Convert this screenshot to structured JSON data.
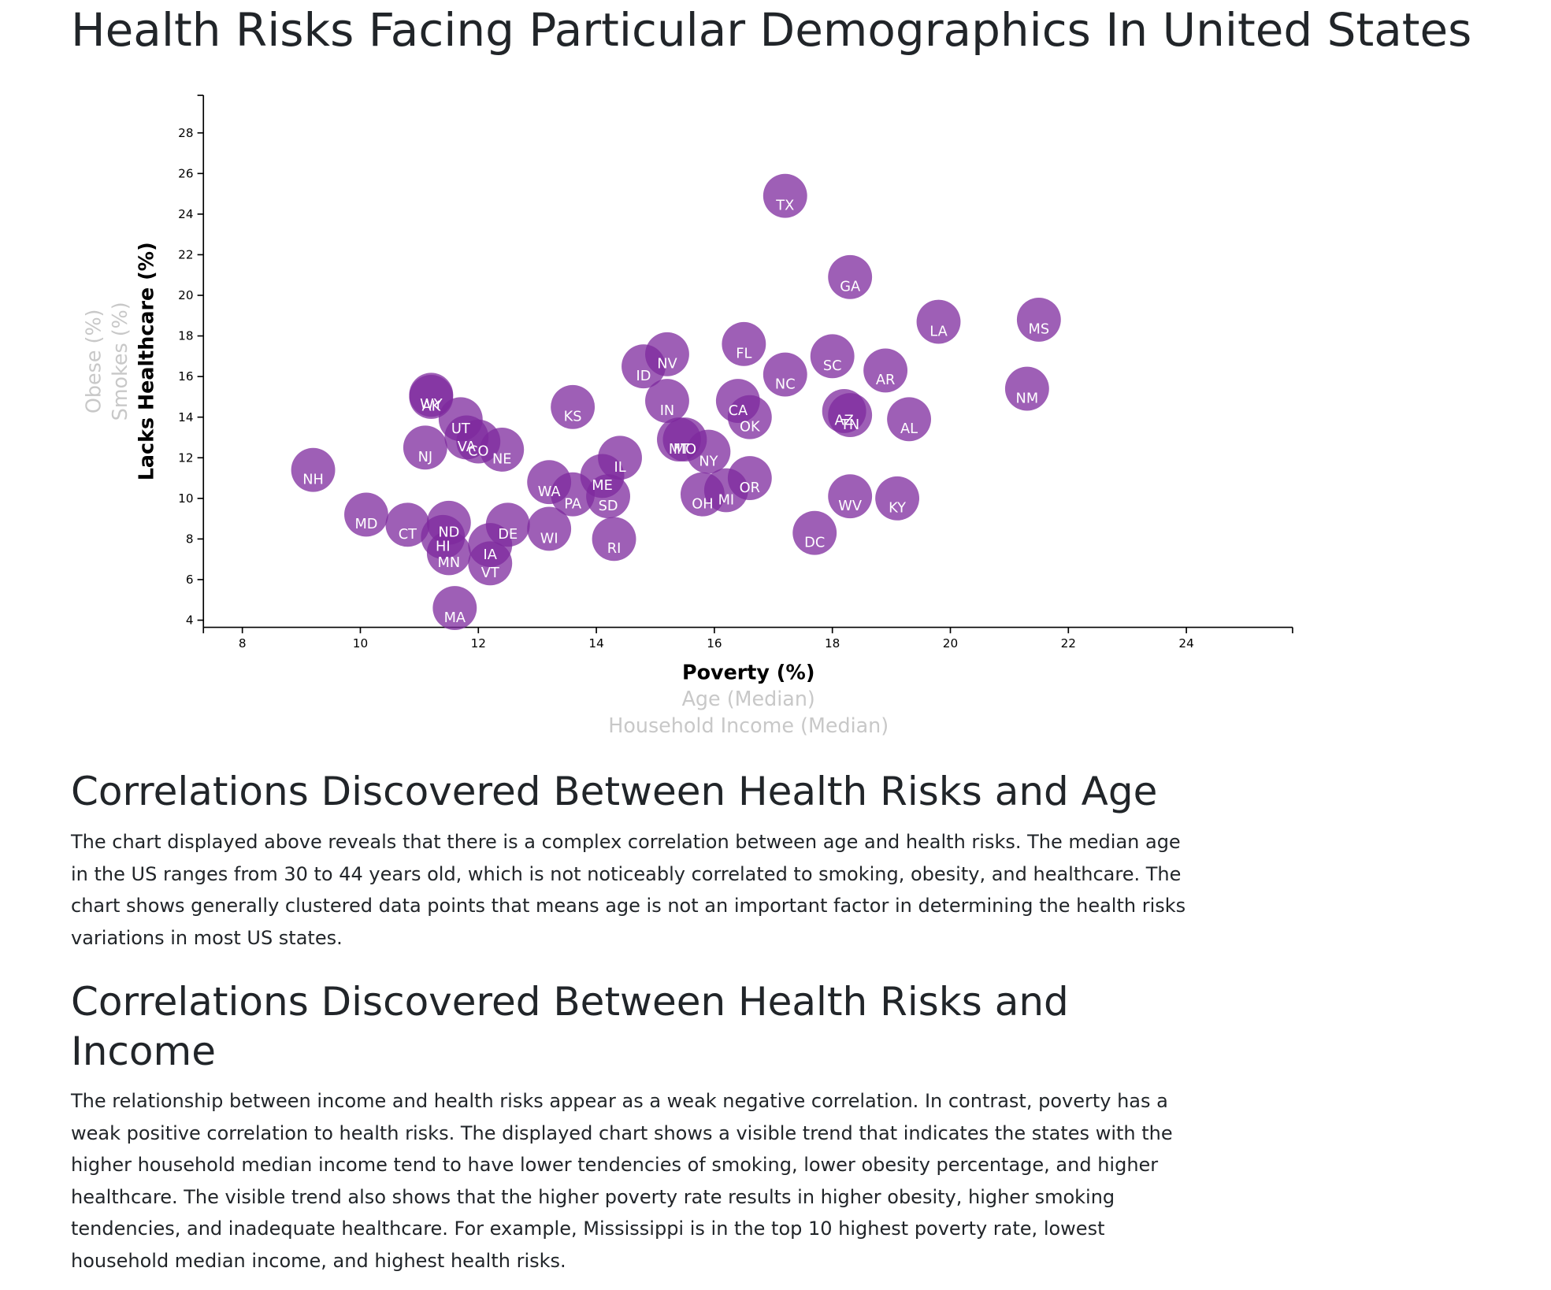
{
  "chart_data": {
    "type": "scatter",
    "title": "Health Risks Facing Particular Demographics In United States",
    "x_axis_options": [
      "Poverty (%)",
      "Age (Median)",
      "Household Income (Median)"
    ],
    "y_axis_options": [
      "Lacks Healthcare (%)",
      "Smokes (%)",
      "Obese (%)"
    ],
    "color": "#7d2a9e",
    "xlim": [
      7.34,
      25.8
    ],
    "ylim": [
      3.65,
      29.85
    ],
    "xticks": [
      8,
      10,
      12,
      14,
      16,
      18,
      20,
      22,
      24
    ],
    "yticks": [
      4,
      6,
      8,
      10,
      12,
      14,
      16,
      18,
      20,
      22,
      24,
      26,
      28
    ],
    "labels": [
      "TX",
      "GA",
      "LA",
      "MS",
      "FL",
      "NV",
      "ID",
      "SC",
      "NC",
      "AR",
      "NM",
      "KS",
      "IN",
      "CA",
      "OK",
      "AZ",
      "TN",
      "AL",
      "WY",
      "AK",
      "UT",
      "VA",
      "CO",
      "NE",
      "NJ",
      "NH",
      "IL",
      "MT",
      "MO",
      "NY",
      "ME",
      "WA",
      "PA",
      "SD",
      "OR",
      "OH",
      "MI",
      "WV",
      "KY",
      "DC",
      "MD",
      "CT",
      "ND",
      "HI",
      "DE",
      "WI",
      "IA",
      "MN",
      "VT",
      "RI",
      "MA"
    ],
    "x": [
      17.2,
      18.3,
      19.8,
      21.5,
      16.5,
      15.2,
      14.8,
      18.0,
      17.2,
      18.9,
      21.3,
      13.6,
      15.2,
      16.4,
      16.6,
      18.2,
      18.3,
      19.3,
      11.2,
      11.2,
      11.7,
      11.8,
      12.0,
      12.4,
      11.1,
      9.2,
      14.4,
      15.4,
      15.5,
      15.9,
      14.1,
      13.2,
      13.6,
      14.2,
      16.6,
      15.8,
      16.2,
      18.3,
      19.1,
      17.7,
      10.1,
      10.8,
      11.5,
      11.4,
      12.5,
      13.2,
      12.2,
      11.5,
      12.2,
      14.3,
      11.6
    ],
    "values": [
      24.9,
      20.9,
      18.7,
      18.8,
      17.6,
      17.1,
      16.5,
      17.0,
      16.1,
      16.3,
      15.4,
      14.5,
      14.8,
      14.8,
      14.0,
      14.3,
      14.1,
      13.9,
      15.1,
      15.0,
      13.9,
      13.0,
      12.8,
      12.4,
      12.5,
      11.4,
      12.0,
      12.9,
      12.9,
      12.3,
      11.1,
      10.8,
      10.2,
      10.1,
      11.0,
      10.2,
      10.4,
      10.1,
      10.0,
      8.3,
      9.2,
      8.7,
      8.8,
      8.1,
      8.7,
      8.5,
      7.7,
      7.3,
      6.8,
      8.0,
      4.6
    ]
  },
  "sections": [
    {
      "heading": "Correlations Discovered Between Health Risks and Age",
      "text": "The chart displayed above reveals that there is a complex correlation between age and health risks. The median age in the US ranges from 30 to 44 years old, which is not noticeably correlated to smoking, obesity, and healthcare. The chart shows generally clustered data points that means age is not an important factor in determining the health risks variations in most US states."
    },
    {
      "heading": "Correlations Discovered Between Health Risks and Income",
      "text": "The relationship between income and health risks appear as a weak negative correlation. In contrast, poverty has a weak positive correlation to health risks. The displayed chart shows a visible trend that indicates the states with the higher household median income tend to have lower tendencies of smoking, lower obesity percentage, and higher healthcare. The visible trend also shows that the higher poverty rate results in higher obesity, higher smoking tendencies, and inadequate healthcare. For example, Mississippi is in the top 10 highest poverty rate, lowest household median income, and highest health risks."
    }
  ]
}
